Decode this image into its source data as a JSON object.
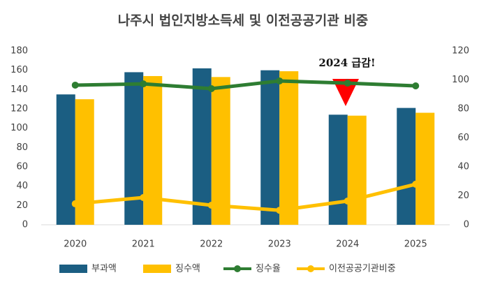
{
  "chart_data": {
    "type": "bar",
    "title": "나주시 법인지방소득세 및 이전공공기관 비중",
    "annotation": "2024 급감!",
    "categories": [
      "2020",
      "2021",
      "2022",
      "2023",
      "2024",
      "2025"
    ],
    "series": [
      {
        "name": "부과액",
        "type": "bar",
        "color": "#1b5e82",
        "values": [
          135,
          158,
          162,
          160,
          114,
          121
        ]
      },
      {
        "name": "징수액",
        "type": "bar",
        "color": "#ffc000",
        "values": [
          130,
          154,
          153,
          159,
          113,
          116
        ]
      },
      {
        "name": "징수율",
        "type": "line",
        "axis": "y2",
        "color": "#2e7d32",
        "values": [
          96.4,
          97.3,
          94,
          99.3,
          97.8,
          95.9
        ]
      },
      {
        "name": "이전공공기관비중",
        "type": "line",
        "axis": "y2",
        "color": "#ffc000",
        "values": [
          14.5,
          18.8,
          13.5,
          10,
          16.4,
          28
        ]
      }
    ],
    "ylim": [
      0,
      180
    ],
    "yticks": [
      0,
      20,
      40,
      60,
      80,
      100,
      120,
      140,
      160,
      180
    ],
    "y2lim": [
      0,
      120
    ],
    "y2ticks": [
      0,
      20,
      40,
      60,
      80,
      100,
      120
    ],
    "grid": false
  }
}
